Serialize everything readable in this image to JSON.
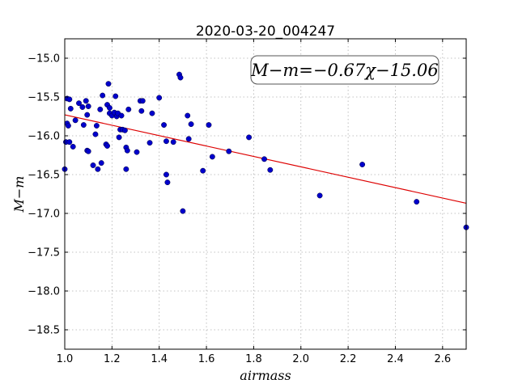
{
  "chart_data": {
    "type": "scatter",
    "title": "2020-03-20_004247",
    "xlabel": "airmass",
    "ylabel": "M−m",
    "xlim": [
      1.0,
      2.7
    ],
    "ylim": [
      -18.75,
      -14.75
    ],
    "xticks": [
      "1.0",
      "1.2",
      "1.4",
      "1.6",
      "1.8",
      "2.0",
      "2.2",
      "2.4",
      "2.6"
    ],
    "yticks": [
      "−15.0",
      "−15.5",
      "−16.0",
      "−16.5",
      "−17.0",
      "−17.5",
      "−18.0",
      "−18.5"
    ],
    "xtick_values": [
      1.0,
      1.2,
      1.4,
      1.6,
      1.8,
      2.0,
      2.2,
      2.4,
      2.6
    ],
    "ytick_values": [
      -15.0,
      -15.5,
      -16.0,
      -16.5,
      -17.0,
      -17.5,
      -18.0,
      -18.5
    ],
    "grid": true,
    "annotation": "M−m=−0.67χ−15.06",
    "fit": {
      "slope": -0.67,
      "intercept": -15.06,
      "color": "#dd0000"
    },
    "point_color": "#0000cc",
    "series": [
      {
        "x": [
          1.0,
          1.005,
          1.01,
          1.01,
          1.015,
          1.02,
          1.02,
          1.025,
          1.035,
          1.045,
          1.06,
          1.075,
          1.08,
          1.09,
          1.095,
          1.095,
          1.1,
          1.1,
          1.12,
          1.13,
          1.135,
          1.14,
          1.15,
          1.155,
          1.16,
          1.175,
          1.18,
          1.18,
          1.185,
          1.19,
          1.19,
          1.2,
          1.21,
          1.215,
          1.22,
          1.225,
          1.23,
          1.235,
          1.24,
          1.245,
          1.255,
          1.26,
          1.26,
          1.265,
          1.27,
          1.305,
          1.32,
          1.325,
          1.33,
          1.36,
          1.37,
          1.4,
          1.42,
          1.43,
          1.43,
          1.435,
          1.46,
          1.485,
          1.49,
          1.5,
          1.52,
          1.525,
          1.535,
          1.585,
          1.61,
          1.625,
          1.695,
          1.78,
          1.845,
          1.87,
          2.08,
          2.26,
          2.49,
          2.7
        ],
        "y": [
          -16.43,
          -16.08,
          -15.52,
          -15.84,
          -15.87,
          -15.53,
          -16.08,
          -15.65,
          -16.14,
          -15.8,
          -15.58,
          -15.63,
          -15.86,
          -15.55,
          -15.73,
          -16.19,
          -16.2,
          -15.62,
          -16.38,
          -15.98,
          -15.87,
          -16.43,
          -15.66,
          -16.35,
          -15.48,
          -16.11,
          -16.13,
          -15.6,
          -15.33,
          -15.64,
          -15.71,
          -15.74,
          -15.7,
          -15.49,
          -15.75,
          -15.71,
          -16.02,
          -15.92,
          -15.74,
          -15.92,
          -15.93,
          -16.43,
          -16.15,
          -16.19,
          -15.66,
          -16.21,
          -15.55,
          -15.68,
          -15.55,
          -16.09,
          -15.71,
          -15.51,
          -15.86,
          -16.07,
          -16.5,
          -16.6,
          -16.08,
          -15.21,
          -15.25,
          -16.97,
          -15.74,
          -16.04,
          -15.85,
          -16.45,
          -15.86,
          -16.27,
          -16.2,
          -16.02,
          -16.3,
          -16.44,
          -16.77,
          -16.37,
          -16.85,
          -17.18
        ]
      }
    ]
  }
}
